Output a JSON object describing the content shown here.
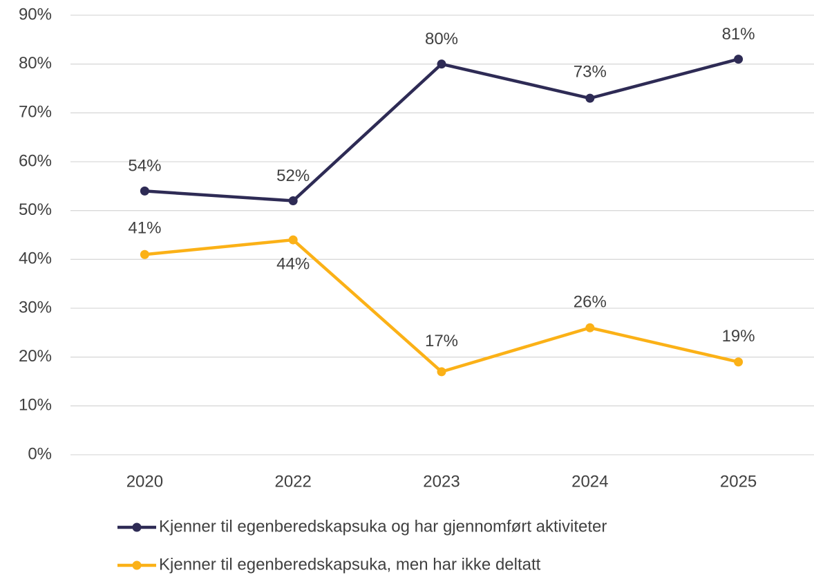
{
  "chart_data": {
    "type": "line",
    "categories": [
      "2020",
      "2022",
      "2023",
      "2024",
      "2025"
    ],
    "series": [
      {
        "name": "Kjenner til egenberedskapsuka og har gjennomført aktiviteter",
        "color": "#2e2b55",
        "values": [
          54,
          52,
          80,
          73,
          81
        ],
        "value_labels": [
          "54%",
          "52%",
          "80%",
          "73%",
          "81%"
        ]
      },
      {
        "name": "Kjenner til egenberedskapsuka, men har ikke deltatt",
        "color": "#fbb117",
        "values": [
          41,
          44,
          17,
          26,
          19
        ],
        "value_labels": [
          "41%",
          "44%",
          "17%",
          "26%",
          "19%"
        ]
      }
    ],
    "ylim": [
      0,
      90
    ],
    "yticks": [
      {
        "value": 0,
        "label": "0%"
      },
      {
        "value": 10,
        "label": "10%"
      },
      {
        "value": 20,
        "label": "20%"
      },
      {
        "value": 30,
        "label": "30%"
      },
      {
        "value": 40,
        "label": "40%"
      },
      {
        "value": 50,
        "label": "50%"
      },
      {
        "value": 60,
        "label": "60%"
      },
      {
        "value": 70,
        "label": "70%"
      },
      {
        "value": 80,
        "label": "80%"
      },
      {
        "value": 90,
        "label": "90%"
      }
    ],
    "grid": true
  }
}
